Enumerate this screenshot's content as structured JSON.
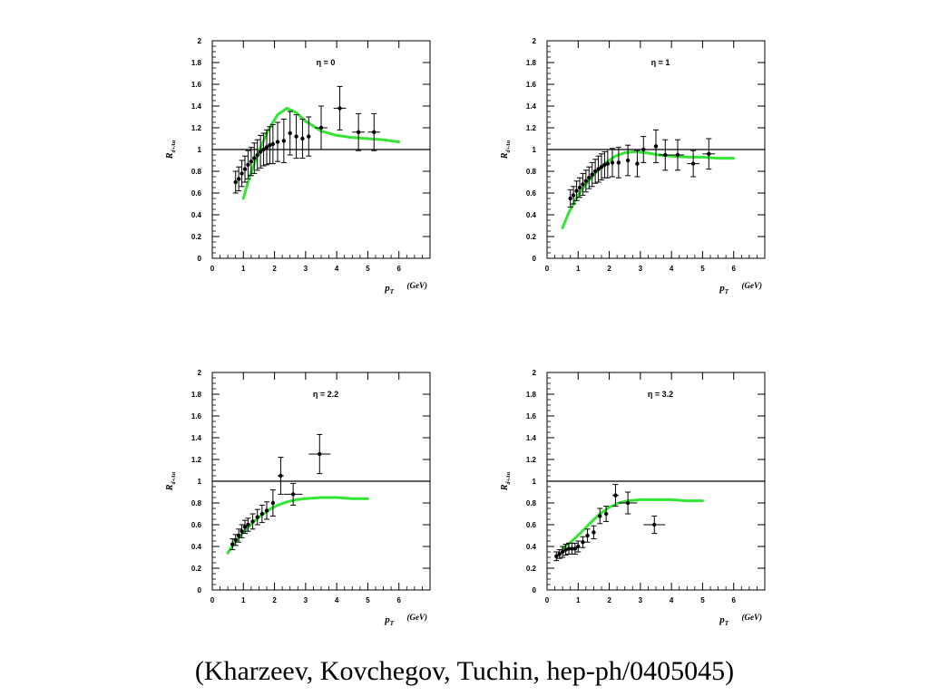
{
  "caption": "(Kharzeev, Kovchegov, Tuchin,  hep-ph/0405045)",
  "colors": {
    "theory_curve": "#33e633",
    "data": "#000000"
  },
  "chart_data": [
    {
      "type": "scatter",
      "title": "η = 0",
      "xlabel": "p_T",
      "xunit": "(GeV)",
      "ylabel": "R",
      "ylabel_sub": "d+Au",
      "xlim": [
        0,
        7
      ],
      "ylim": [
        0,
        2
      ],
      "xticks": [
        0,
        1,
        2,
        3,
        4,
        5,
        6
      ],
      "yticks": [
        0,
        0.2,
        0.4,
        0.6,
        0.8,
        1,
        1.2,
        1.4,
        1.6,
        1.8,
        2
      ],
      "reference_line": 1,
      "grid": false,
      "points": [
        {
          "x": 0.75,
          "y": 0.7,
          "ey": 0.1,
          "ex": 0
        },
        {
          "x": 0.85,
          "y": 0.73,
          "ey": 0.11,
          "ex": 0
        },
        {
          "x": 0.95,
          "y": 0.78,
          "ey": 0.12,
          "ex": 0
        },
        {
          "x": 1.05,
          "y": 0.82,
          "ey": 0.12,
          "ex": 0
        },
        {
          "x": 1.15,
          "y": 0.86,
          "ey": 0.13,
          "ex": 0
        },
        {
          "x": 1.25,
          "y": 0.89,
          "ey": 0.13,
          "ex": 0
        },
        {
          "x": 1.35,
          "y": 0.92,
          "ey": 0.14,
          "ex": 0
        },
        {
          "x": 1.45,
          "y": 0.95,
          "ey": 0.14,
          "ex": 0
        },
        {
          "x": 1.55,
          "y": 0.98,
          "ey": 0.15,
          "ex": 0
        },
        {
          "x": 1.65,
          "y": 1.0,
          "ey": 0.15,
          "ex": 0
        },
        {
          "x": 1.75,
          "y": 1.02,
          "ey": 0.16,
          "ex": 0
        },
        {
          "x": 1.85,
          "y": 1.04,
          "ey": 0.17,
          "ex": 0
        },
        {
          "x": 1.95,
          "y": 1.05,
          "ey": 0.18,
          "ex": 0
        },
        {
          "x": 2.1,
          "y": 1.07,
          "ey": 0.18,
          "ex": 0
        },
        {
          "x": 2.3,
          "y": 1.08,
          "ey": 0.2,
          "ex": 0
        },
        {
          "x": 2.5,
          "y": 1.15,
          "ey": 0.2,
          "ex": 0.05
        },
        {
          "x": 2.7,
          "y": 1.12,
          "ey": 0.2,
          "ex": 0.05
        },
        {
          "x": 2.9,
          "y": 1.1,
          "ey": 0.18,
          "ex": 0.05
        },
        {
          "x": 3.1,
          "y": 1.12,
          "ey": 0.18,
          "ex": 0.05
        },
        {
          "x": 3.5,
          "y": 1.2,
          "ey": 0.2,
          "ex": 0.2
        },
        {
          "x": 4.1,
          "y": 1.38,
          "ey": 0.2,
          "ex": 0.2
        },
        {
          "x": 4.7,
          "y": 1.16,
          "ey": 0.17,
          "ex": 0.2
        },
        {
          "x": 5.2,
          "y": 1.16,
          "ey": 0.17,
          "ex": 0.2
        }
      ],
      "curve": {
        "x": [
          1.0,
          1.2,
          1.5,
          1.8,
          2.1,
          2.4,
          2.7,
          3.0,
          3.5,
          4.0,
          4.5,
          5.0,
          5.5,
          6.0
        ],
        "y": [
          0.55,
          0.75,
          0.98,
          1.18,
          1.32,
          1.38,
          1.34,
          1.26,
          1.17,
          1.13,
          1.11,
          1.1,
          1.09,
          1.07
        ]
      }
    },
    {
      "type": "scatter",
      "title": "η = 1",
      "xlabel": "p_T",
      "xunit": "(GeV)",
      "ylabel": "R",
      "ylabel_sub": "d+Au",
      "xlim": [
        0,
        7
      ],
      "ylim": [
        0,
        2
      ],
      "xticks": [
        0,
        1,
        2,
        3,
        4,
        5,
        6
      ],
      "yticks": [
        0,
        0.2,
        0.4,
        0.6,
        0.8,
        1,
        1.2,
        1.4,
        1.6,
        1.8,
        2
      ],
      "reference_line": 1,
      "grid": false,
      "points": [
        {
          "x": 0.75,
          "y": 0.55,
          "ey": 0.08,
          "ex": 0
        },
        {
          "x": 0.85,
          "y": 0.58,
          "ey": 0.08,
          "ex": 0
        },
        {
          "x": 0.95,
          "y": 0.62,
          "ey": 0.09,
          "ex": 0
        },
        {
          "x": 1.05,
          "y": 0.65,
          "ey": 0.09,
          "ex": 0
        },
        {
          "x": 1.15,
          "y": 0.68,
          "ey": 0.1,
          "ex": 0
        },
        {
          "x": 1.25,
          "y": 0.71,
          "ey": 0.1,
          "ex": 0
        },
        {
          "x": 1.35,
          "y": 0.74,
          "ey": 0.1,
          "ex": 0
        },
        {
          "x": 1.45,
          "y": 0.77,
          "ey": 0.11,
          "ex": 0
        },
        {
          "x": 1.55,
          "y": 0.8,
          "ey": 0.11,
          "ex": 0
        },
        {
          "x": 1.65,
          "y": 0.82,
          "ey": 0.12,
          "ex": 0
        },
        {
          "x": 1.75,
          "y": 0.84,
          "ey": 0.12,
          "ex": 0
        },
        {
          "x": 1.85,
          "y": 0.86,
          "ey": 0.12,
          "ex": 0
        },
        {
          "x": 1.95,
          "y": 0.87,
          "ey": 0.13,
          "ex": 0
        },
        {
          "x": 2.1,
          "y": 0.88,
          "ey": 0.13,
          "ex": 0
        },
        {
          "x": 2.3,
          "y": 0.88,
          "ey": 0.14,
          "ex": 0
        },
        {
          "x": 2.6,
          "y": 0.9,
          "ey": 0.14,
          "ex": 0
        },
        {
          "x": 2.9,
          "y": 0.87,
          "ey": 0.12,
          "ex": 0.05
        },
        {
          "x": 3.1,
          "y": 1.0,
          "ey": 0.12,
          "ex": 0.05
        },
        {
          "x": 3.5,
          "y": 1.03,
          "ey": 0.15,
          "ex": 0.05
        },
        {
          "x": 3.8,
          "y": 0.95,
          "ey": 0.14,
          "ex": 0.2
        },
        {
          "x": 4.2,
          "y": 0.95,
          "ey": 0.14,
          "ex": 0.2
        },
        {
          "x": 4.7,
          "y": 0.87,
          "ey": 0.12,
          "ex": 0.2
        },
        {
          "x": 5.2,
          "y": 0.96,
          "ey": 0.14,
          "ex": 0.2
        }
      ],
      "curve": {
        "x": [
          0.5,
          0.7,
          1.0,
          1.3,
          1.6,
          1.9,
          2.2,
          2.5,
          2.8,
          3.2,
          3.6,
          4.0,
          4.5,
          5.0,
          5.5,
          6.0
        ],
        "y": [
          0.28,
          0.42,
          0.58,
          0.7,
          0.8,
          0.88,
          0.94,
          0.97,
          0.98,
          0.97,
          0.95,
          0.94,
          0.93,
          0.93,
          0.92,
          0.92
        ]
      }
    },
    {
      "type": "scatter",
      "title": "η = 2.2",
      "xlabel": "p_T",
      "xunit": "(GeV)",
      "ylabel": "R",
      "ylabel_sub": "d+Au",
      "xlim": [
        0,
        7
      ],
      "ylim": [
        0,
        2
      ],
      "xticks": [
        0,
        1,
        2,
        3,
        4,
        5,
        6
      ],
      "yticks": [
        0,
        0.2,
        0.4,
        0.6,
        0.8,
        1,
        1.2,
        1.4,
        1.6,
        1.8,
        2
      ],
      "reference_line": 1,
      "grid": false,
      "points": [
        {
          "x": 0.65,
          "y": 0.42,
          "ey": 0.05,
          "ex": 0.05
        },
        {
          "x": 0.75,
          "y": 0.46,
          "ey": 0.05,
          "ex": 0.05
        },
        {
          "x": 0.85,
          "y": 0.5,
          "ey": 0.06,
          "ex": 0.05
        },
        {
          "x": 0.95,
          "y": 0.54,
          "ey": 0.06,
          "ex": 0.05
        },
        {
          "x": 1.05,
          "y": 0.58,
          "ey": 0.06,
          "ex": 0.05
        },
        {
          "x": 1.15,
          "y": 0.6,
          "ey": 0.06,
          "ex": 0.05
        },
        {
          "x": 1.3,
          "y": 0.63,
          "ey": 0.07,
          "ex": 0.05
        },
        {
          "x": 1.45,
          "y": 0.67,
          "ey": 0.07,
          "ex": 0.05
        },
        {
          "x": 1.6,
          "y": 0.7,
          "ey": 0.08,
          "ex": 0.05
        },
        {
          "x": 1.75,
          "y": 0.73,
          "ey": 0.08,
          "ex": 0.05
        },
        {
          "x": 1.95,
          "y": 0.8,
          "ey": 0.12,
          "ex": 0.05
        },
        {
          "x": 2.2,
          "y": 1.05,
          "ey": 0.17,
          "ex": 0.1
        },
        {
          "x": 2.6,
          "y": 0.88,
          "ey": 0.1,
          "ex": 0.3
        },
        {
          "x": 3.45,
          "y": 1.25,
          "ey": 0.18,
          "ex": 0.35
        }
      ],
      "curve": {
        "x": [
          0.5,
          0.7,
          0.9,
          1.1,
          1.3,
          1.5,
          1.7,
          1.9,
          2.1,
          2.4,
          2.7,
          3.0,
          3.5,
          4.0,
          4.5,
          5.0
        ],
        "y": [
          0.34,
          0.43,
          0.5,
          0.56,
          0.62,
          0.67,
          0.71,
          0.75,
          0.78,
          0.81,
          0.83,
          0.84,
          0.85,
          0.85,
          0.84,
          0.84
        ]
      }
    },
    {
      "type": "scatter",
      "title": "η = 3.2",
      "xlabel": "p_T",
      "xunit": "(GeV)",
      "ylabel": "R",
      "ylabel_sub": "d+Au",
      "xlim": [
        0,
        7
      ],
      "ylim": [
        0,
        2
      ],
      "xticks": [
        0,
        1,
        2,
        3,
        4,
        5,
        6
      ],
      "yticks": [
        0,
        0.2,
        0.4,
        0.6,
        0.8,
        1,
        1.2,
        1.4,
        1.6,
        1.8,
        2
      ],
      "reference_line": 1,
      "grid": false,
      "points": [
        {
          "x": 0.3,
          "y": 0.31,
          "ey": 0.04,
          "ex": 0.05
        },
        {
          "x": 0.4,
          "y": 0.33,
          "ey": 0.04,
          "ex": 0.05
        },
        {
          "x": 0.5,
          "y": 0.35,
          "ey": 0.05,
          "ex": 0.05
        },
        {
          "x": 0.6,
          "y": 0.37,
          "ey": 0.05,
          "ex": 0.05
        },
        {
          "x": 0.7,
          "y": 0.38,
          "ey": 0.05,
          "ex": 0.05
        },
        {
          "x": 0.8,
          "y": 0.38,
          "ey": 0.05,
          "ex": 0.05
        },
        {
          "x": 0.9,
          "y": 0.38,
          "ey": 0.05,
          "ex": 0.05
        },
        {
          "x": 1.0,
          "y": 0.4,
          "ey": 0.05,
          "ex": 0.05
        },
        {
          "x": 1.15,
          "y": 0.44,
          "ey": 0.05,
          "ex": 0.05
        },
        {
          "x": 1.3,
          "y": 0.5,
          "ey": 0.06,
          "ex": 0.05
        },
        {
          "x": 1.5,
          "y": 0.53,
          "ey": 0.06,
          "ex": 0.05
        },
        {
          "x": 1.7,
          "y": 0.68,
          "ey": 0.07,
          "ex": 0.05
        },
        {
          "x": 1.9,
          "y": 0.7,
          "ey": 0.07,
          "ex": 0.05
        },
        {
          "x": 2.2,
          "y": 0.87,
          "ey": 0.1,
          "ex": 0.1
        },
        {
          "x": 2.6,
          "y": 0.8,
          "ey": 0.1,
          "ex": 0.3
        },
        {
          "x": 3.45,
          "y": 0.6,
          "ey": 0.08,
          "ex": 0.35
        }
      ],
      "curve": {
        "x": [
          0.5,
          0.8,
          1.1,
          1.4,
          1.7,
          2.0,
          2.3,
          2.6,
          3.0,
          3.5,
          4.0,
          4.5,
          5.0
        ],
        "y": [
          0.38,
          0.45,
          0.53,
          0.62,
          0.7,
          0.76,
          0.8,
          0.82,
          0.83,
          0.83,
          0.83,
          0.82,
          0.82
        ]
      }
    }
  ]
}
